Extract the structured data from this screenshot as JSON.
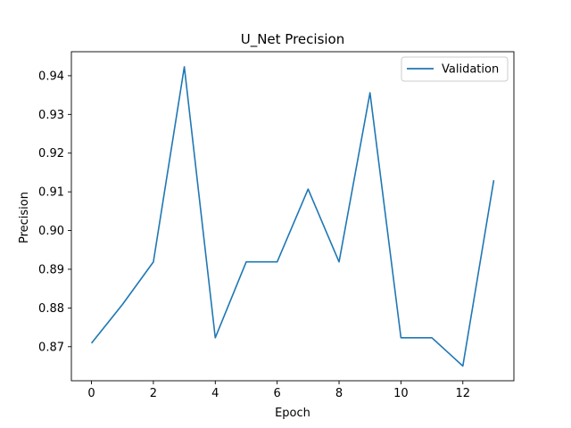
{
  "chart_data": {
    "type": "line",
    "title": "U_Net Precision",
    "xlabel": "Epoch",
    "ylabel": "Precision",
    "x": [
      0,
      1,
      2,
      3,
      4,
      5,
      6,
      7,
      8,
      9,
      10,
      11,
      12,
      13
    ],
    "series": [
      {
        "name": "Validation",
        "color": "#1f77b4",
        "values": [
          0.8709,
          0.8809,
          0.8919,
          0.9423,
          0.8723,
          0.8919,
          0.8919,
          0.9107,
          0.8919,
          0.9356,
          0.8723,
          0.8723,
          0.865,
          0.913
        ]
      }
    ],
    "xlim": [
      -0.65,
      13.65
    ],
    "ylim": [
      0.8612,
      0.9462
    ],
    "xticks": [
      0,
      2,
      4,
      6,
      8,
      10,
      12
    ],
    "xtick_labels": [
      "0",
      "2",
      "4",
      "6",
      "8",
      "10",
      "12"
    ],
    "yticks": [
      0.87,
      0.88,
      0.89,
      0.9,
      0.91,
      0.92,
      0.93,
      0.94
    ],
    "ytick_labels": [
      "0.87",
      "0.88",
      "0.89",
      "0.90",
      "0.91",
      "0.92",
      "0.93",
      "0.94"
    ],
    "grid": false,
    "legend": "top-right"
  }
}
